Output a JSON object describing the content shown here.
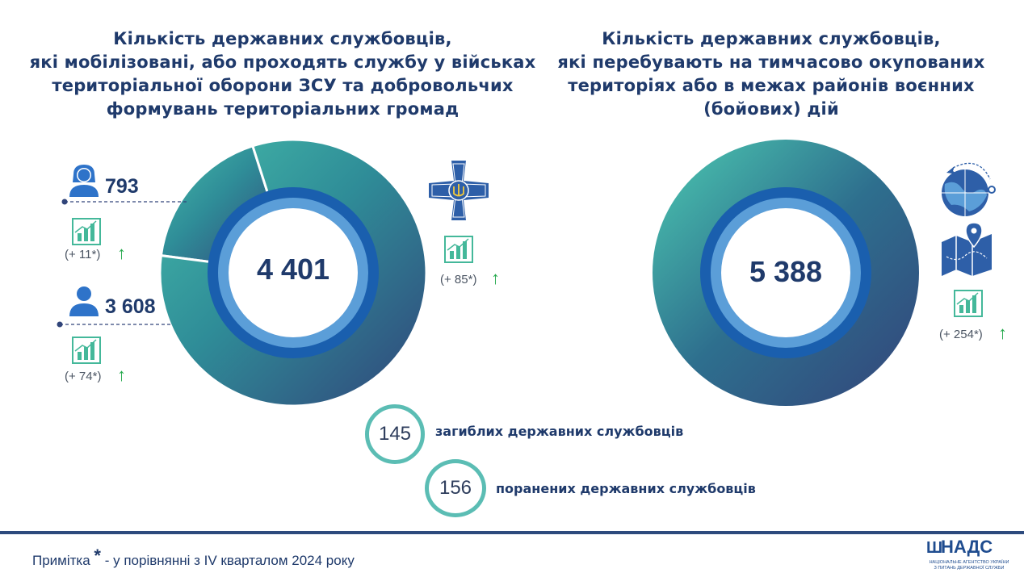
{
  "left": {
    "title_lines": [
      "Кількість державних службовців,",
      "які мобілізовані, або проходять службу у військах",
      "територіальної оборони ЗСУ та добровольчих",
      "формувань територіальних громад"
    ],
    "total": "4 401",
    "women_value": "793",
    "women_change": "(+ 11*)",
    "men_value": "3 608",
    "men_change": "(+ 74*)",
    "total_change": "(+ 85*)"
  },
  "right": {
    "title_lines": [
      "Кількість державних службовців,",
      "які перебувають на тимчасово окупованих",
      "територіях або в межах районів воєнних",
      "(бойових) дій"
    ],
    "total": "5 388",
    "total_change": "(+ 254*)"
  },
  "stats": {
    "killed_value": "145",
    "killed_label": "загиблих державних службовців",
    "wounded_value": "156",
    "wounded_label": "поранених державних службовців"
  },
  "footer": {
    "note_prefix": "Примітка",
    "note_star": "*",
    "note_text": "- у порівнянні з IV кварталом 2024 року",
    "logo_text": "НАДС",
    "logo_sub_1": "НАЦІОНАЛЬНЕ АГЕНТСТВО УКРАЇНИ",
    "logo_sub_2": "З ПИТАНЬ ДЕРЖАВНОЇ СЛУЖБИ"
  },
  "colors": {
    "teal": "#45bba9",
    "navy": "#31457a",
    "inner_blue": "#1a5fae",
    "inner_light": "#5b9ed8",
    "up_arrow": "#22a84a",
    "title": "#1f3a6b"
  },
  "chart_data": [
    {
      "type": "pie",
      "categories": [
        "793",
        "3 608"
      ],
      "values": [
        793,
        3608
      ],
      "total": 4401
    },
    {
      "type": "pie",
      "categories": [
        "5 388"
      ],
      "values": [
        5388
      ],
      "total": 5388
    }
  ]
}
